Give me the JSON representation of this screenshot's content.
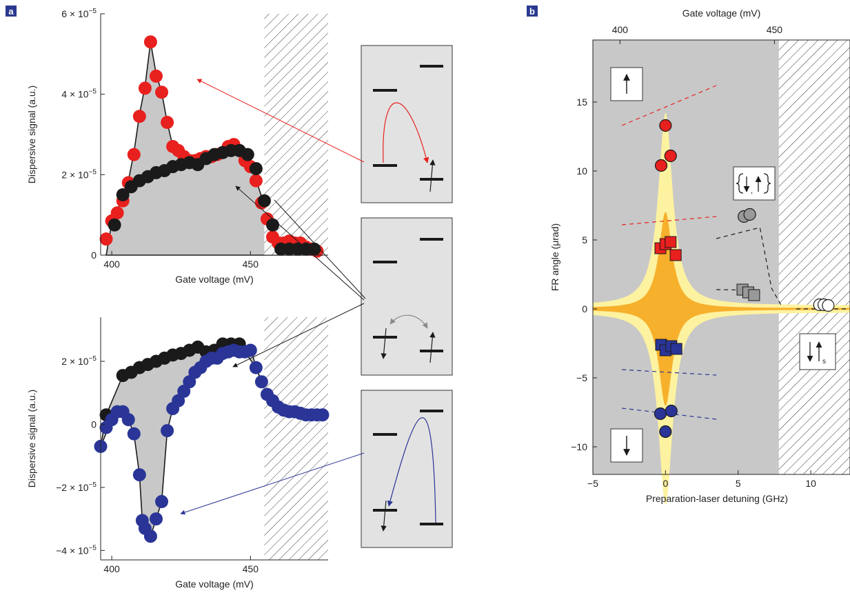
{
  "panel_labels": {
    "a": "a",
    "b": "b"
  },
  "colors": {
    "red": "#e8201e",
    "black": "#1a1a1a",
    "blue": "#2a3597",
    "grey": "#999999",
    "fill": "#c8c8c8",
    "yellow": "#fdf2a0",
    "orange": "#f7b02c",
    "panel_bg": "#e2e2e2"
  },
  "icons": [
    "arrow-up-icon",
    "arrow-down-icon",
    "spin-pair-icon",
    "spin-singlet-icon"
  ],
  "chart_data": [
    {
      "type": "scatter",
      "panel": "a-top",
      "xlabel": "Gate voltage (mV)",
      "ylabel": "Dispersive signal (a.u.)",
      "xlim": [
        396,
        478
      ],
      "ylim": [
        0,
        6e-05
      ],
      "xticks": [
        "400",
        "450"
      ],
      "yticks": [
        {
          "m": "0",
          "e": ""
        },
        {
          "m": "2",
          "e": "−5"
        },
        {
          "m": "4",
          "e": "−5"
        },
        {
          "m": "6",
          "e": "−5"
        }
      ],
      "hatch_from": 455,
      "series": [
        {
          "color": "red",
          "x": [
            398,
            400,
            402,
            404,
            406,
            408,
            410,
            412,
            414,
            416,
            418,
            420,
            422,
            424,
            426,
            428,
            430,
            432,
            434,
            436,
            438,
            440,
            442,
            444,
            446,
            448,
            450,
            452,
            454,
            456,
            458,
            460,
            462,
            464,
            466,
            468,
            470,
            472,
            474
          ],
          "y": [
            0.4,
            0.85,
            1.05,
            1.35,
            1.8,
            2.5,
            3.45,
            4.15,
            5.3,
            4.45,
            4.05,
            3.3,
            2.7,
            2.6,
            2.45,
            2.35,
            2.35,
            2.4,
            2.45,
            2.45,
            2.5,
            2.55,
            2.7,
            2.75,
            2.6,
            2.35,
            2.2,
            1.85,
            1.3,
            0.9,
            0.45,
            0.3,
            0.3,
            0.35,
            0.3,
            0.3,
            0.2,
            0.15,
            0.1
          ]
        },
        {
          "color": "black",
          "x": [
            401,
            404,
            407,
            410,
            413,
            416,
            419,
            422,
            425,
            428,
            431,
            434,
            437,
            440,
            443,
            446,
            449,
            452,
            455,
            458,
            461,
            464,
            467,
            470,
            473
          ],
          "y": [
            0.75,
            1.5,
            1.7,
            1.85,
            1.95,
            2.05,
            2.1,
            2.2,
            2.25,
            2.3,
            2.25,
            2.4,
            2.5,
            2.55,
            2.6,
            2.6,
            2.5,
            2.15,
            1.35,
            0.75,
            0.15,
            0.15,
            0.15,
            0.15,
            0.15
          ]
        }
      ]
    },
    {
      "type": "scatter",
      "panel": "a-bottom",
      "xlabel": "Gate voltage (mV)",
      "ylabel": "Dispersive signal (a.u.)",
      "xlim": [
        396,
        478
      ],
      "ylim": [
        -4.3e-05,
        3.4e-05
      ],
      "xticks": [
        "400",
        "450"
      ],
      "yticks": [
        {
          "m": "−4",
          "e": "−5"
        },
        {
          "m": "−2",
          "e": "−5"
        },
        {
          "m": "0",
          "e": ""
        },
        {
          "m": "2",
          "e": "−5"
        }
      ],
      "hatch_from": 455,
      "series": [
        {
          "color": "black",
          "x": [
            398,
            404,
            407,
            410,
            413,
            416,
            419,
            422,
            425,
            428,
            431,
            434,
            437,
            440,
            443,
            446
          ],
          "y": [
            0.3,
            1.55,
            1.65,
            1.8,
            1.9,
            2.0,
            2.1,
            2.2,
            2.25,
            2.35,
            2.45,
            2.3,
            2.35,
            2.55,
            2.55,
            2.55
          ]
        },
        {
          "color": "blue",
          "x": [
            396,
            398,
            400,
            402,
            404,
            406,
            408,
            410,
            411,
            412,
            414,
            416,
            418,
            420,
            422,
            424,
            426,
            428,
            430,
            432,
            434,
            436,
            438,
            440,
            442,
            444,
            446,
            448,
            450,
            452,
            454,
            456,
            458,
            460,
            462,
            464,
            466,
            468,
            470,
            472,
            474,
            476
          ],
          "y": [
            -0.7,
            -0.1,
            0.15,
            0.4,
            0.4,
            0.15,
            -0.3,
            -1.6,
            -3.05,
            -3.3,
            -3.55,
            -3.0,
            -2.45,
            -0.2,
            0.5,
            0.75,
            1.05,
            1.35,
            1.65,
            1.8,
            2.0,
            2.1,
            2.1,
            2.25,
            2.3,
            2.35,
            2.3,
            2.3,
            2.35,
            1.8,
            1.35,
            0.95,
            0.75,
            0.55,
            0.45,
            0.4,
            0.4,
            0.35,
            0.3,
            0.3,
            0.3,
            0.3
          ]
        }
      ]
    },
    {
      "type": "scatter",
      "panel": "b",
      "xlabel": "Preparation-laser detuning (GHz)",
      "ylabel": "FR angle (μrad)",
      "x2label": "Gate voltage (mV)",
      "xlim": [
        -5,
        12.7
      ],
      "ylim": [
        -12,
        19.5
      ],
      "xticks": [
        -5,
        0,
        5,
        10
      ],
      "yticks": [
        -10,
        -5,
        0,
        5,
        10,
        15
      ],
      "x2ticks": [
        "400",
        "450"
      ],
      "hatch_from": 7.8,
      "series": [
        {
          "color": "red",
          "marker": "circle",
          "x": [
            -0.3,
            0.0,
            0.35
          ],
          "y": [
            10.4,
            13.3,
            11.1
          ]
        },
        {
          "color": "red",
          "marker": "square",
          "x": [
            -0.35,
            0.0,
            0.35,
            0.7
          ],
          "y": [
            4.4,
            4.7,
            4.85,
            3.9
          ]
        },
        {
          "color": "blue",
          "marker": "square",
          "x": [
            -0.3,
            0.0,
            0.4,
            0.75
          ],
          "y": [
            -2.6,
            -3.0,
            -2.7,
            -2.9
          ]
        },
        {
          "color": "blue",
          "marker": "circle",
          "x": [
            -0.35,
            0.0,
            0.4
          ],
          "y": [
            -7.6,
            -8.9,
            -7.4
          ]
        },
        {
          "color": "grey",
          "marker": "circle",
          "x": [
            5.4,
            5.8
          ],
          "y": [
            6.7,
            6.85
          ]
        },
        {
          "color": "grey",
          "marker": "square",
          "x": [
            5.3,
            5.7,
            6.1
          ],
          "y": [
            1.4,
            1.2,
            1.0
          ]
        },
        {
          "color": "white",
          "marker": "circle",
          "x": [
            10.6,
            10.9,
            11.2
          ],
          "y": [
            0.3,
            0.3,
            0.25
          ]
        }
      ]
    }
  ]
}
